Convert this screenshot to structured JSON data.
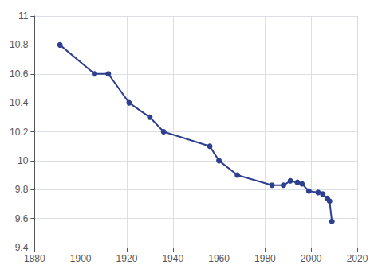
{
  "chart_data": {
    "type": "line",
    "x": [
      1891,
      1906,
      1912,
      1921,
      1930,
      1936,
      1956,
      1960,
      1968,
      1983,
      1988,
      1991,
      1994,
      1996,
      1999,
      2003,
      2005,
      2007,
      2008,
      2009
    ],
    "values": [
      10.8,
      10.6,
      10.6,
      10.4,
      10.3,
      10.2,
      10.1,
      10.0,
      9.9,
      9.83,
      9.83,
      9.86,
      9.85,
      9.84,
      9.79,
      9.78,
      9.77,
      9.74,
      9.72,
      9.58
    ],
    "color": "#2e3f8f",
    "marker": "circle",
    "xlim": [
      1880,
      2020
    ],
    "ylim": [
      9.4,
      11.0
    ],
    "xticks": [
      1880,
      1900,
      1920,
      1940,
      1960,
      1980,
      2000,
      2020
    ],
    "yticks": [
      9.4,
      9.6,
      9.8,
      10.0,
      10.2,
      10.4,
      10.6,
      10.8,
      11.0
    ],
    "grid": true
  }
}
